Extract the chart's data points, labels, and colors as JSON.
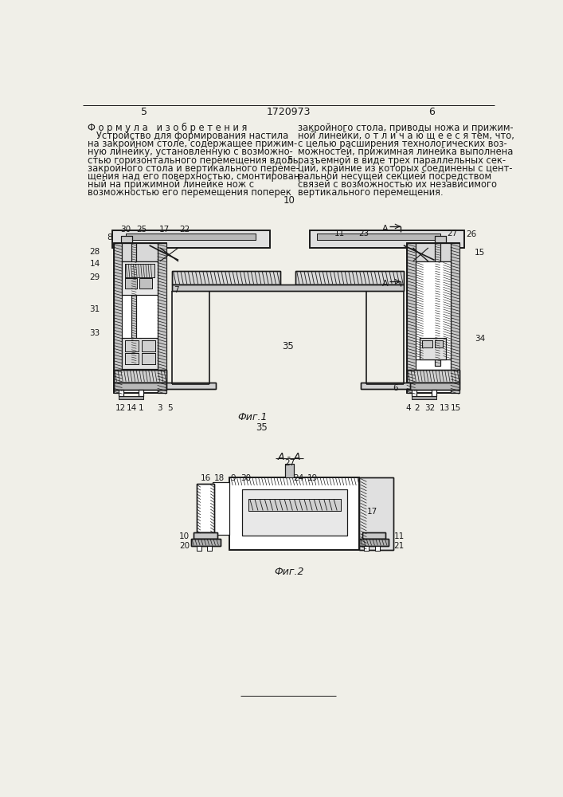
{
  "bg_color": "#f0efe8",
  "line_color": "#1a1a1a",
  "text_color": "#1a1a1a",
  "page_num_left": "5",
  "page_num_center": "1720973",
  "page_num_right": "6",
  "left_col": [
    "Ф о р м у л а   и з о б р е т е н и я",
    "   Устройство для формирования настила",
    "на закройном столе, содержащее прижим-",
    "ную линейку, установленную с возможно-",
    "стью горизонтального перемещения вдоль",
    "закройного стола и вертикального переме-",
    "щения над его поверхностью, смонтирован-",
    "ный на прижимной линейке нож с",
    "возможностью его перемещения поперек"
  ],
  "right_col": [
    "закройного стола, приводы ножа и прижим-",
    "ной линейки, о т л и ч а ю щ е е с я тем, что,",
    "с целью расширения технологических воз-",
    "можностей, прижимная линейка выполнена",
    "разъемной в виде трех параллельных сек-",
    "ций, крайние из которых соединены с цент-",
    "ральной несущей секцией посредством",
    "связей с возможностью их независимого",
    "вертикального перемещения."
  ],
  "fig1_caption": "Фиг.1",
  "fig2_caption": "Фиг.2",
  "fig2_section": "А - А",
  "mid_number": "35"
}
